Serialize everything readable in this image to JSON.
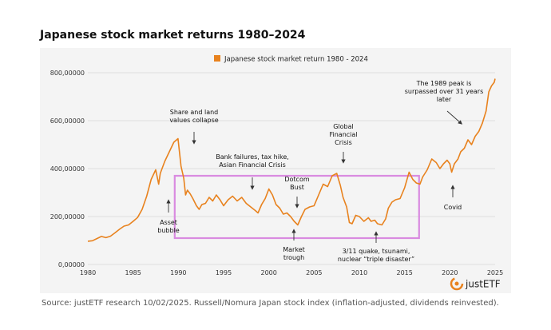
{
  "header": {
    "title": "Japanese stock market returns 1980–2024"
  },
  "footer": {
    "source": "Source: justETF research 10/02/2025. Russell/Nomura Japan stock index (inflation-adjusted, dividends reinvested)."
  },
  "brand": {
    "name": "justETF"
  },
  "colors": {
    "line": "#e8821e",
    "highlight_box": "#d98be0",
    "background": "#f4f4f4",
    "grid": "#d7d7d7"
  },
  "chart_data": {
    "type": "line",
    "title": "Japanese stock market returns 1980–2024",
    "legend": {
      "position": "top-center",
      "entries": [
        "Japanese stock market return 1980 - 2024"
      ]
    },
    "grid": "horizontal",
    "xlim": [
      1980,
      2025
    ],
    "ylim": [
      0,
      800000
    ],
    "x_ticks": [
      "1980",
      "1985",
      "1990",
      "1995",
      "2000",
      "2005",
      "2010",
      "2015",
      "2020",
      "2025"
    ],
    "y_ticks": [
      "0,00000",
      "200,00000",
      "400,00000",
      "600,00000",
      "800,00000"
    ],
    "series": [
      {
        "name": "Japanese stock market return 1980 - 2024",
        "x": [
          1980.0,
          1980.5,
          1981.0,
          1981.5,
          1982.0,
          1982.5,
          1983.0,
          1983.5,
          1984.0,
          1984.5,
          1985.0,
          1985.5,
          1986.0,
          1986.5,
          1987.0,
          1987.5,
          1987.83,
          1988.0,
          1988.5,
          1989.0,
          1989.5,
          1989.96,
          1990.3,
          1990.6,
          1990.8,
          1991.0,
          1991.3,
          1991.6,
          1992.0,
          1992.3,
          1992.6,
          1993.0,
          1993.4,
          1993.8,
          1994.2,
          1994.6,
          1995.0,
          1995.5,
          1996.0,
          1996.5,
          1997.0,
          1997.5,
          1998.0,
          1998.5,
          1998.8,
          1999.2,
          1999.6,
          2000.0,
          2000.4,
          2000.8,
          2001.2,
          2001.6,
          2002.0,
          2002.4,
          2002.8,
          2003.2,
          2003.6,
          2004.0,
          2004.5,
          2005.0,
          2005.5,
          2006.0,
          2006.5,
          2007.0,
          2007.5,
          2007.9,
          2008.2,
          2008.6,
          2008.9,
          2009.2,
          2009.6,
          2010.0,
          2010.5,
          2011.0,
          2011.3,
          2011.7,
          2012.0,
          2012.5,
          2012.9,
          2013.2,
          2013.6,
          2014.0,
          2014.5,
          2015.0,
          2015.5,
          2015.9,
          2016.3,
          2016.7,
          2017.0,
          2017.5,
          2018.0,
          2018.5,
          2018.9,
          2019.3,
          2019.7,
          2020.0,
          2020.2,
          2020.5,
          2020.9,
          2021.2,
          2021.6,
          2022.0,
          2022.4,
          2022.8,
          2023.2,
          2023.6,
          2024.0,
          2024.3,
          2024.6,
          2024.9,
          2025.0
        ],
        "y": [
          97000,
          99000,
          108000,
          117000,
          112000,
          118000,
          132000,
          147000,
          160000,
          165000,
          180000,
          196000,
          230000,
          285000,
          355000,
          395000,
          335000,
          380000,
          430000,
          470000,
          510000,
          525000,
          410000,
          360000,
          290000,
          310000,
          295000,
          275000,
          245000,
          230000,
          250000,
          255000,
          280000,
          265000,
          290000,
          270000,
          245000,
          270000,
          285000,
          265000,
          280000,
          255000,
          240000,
          225000,
          215000,
          250000,
          275000,
          315000,
          290000,
          250000,
          235000,
          210000,
          215000,
          200000,
          180000,
          165000,
          200000,
          230000,
          240000,
          245000,
          290000,
          335000,
          325000,
          370000,
          380000,
          330000,
          280000,
          240000,
          175000,
          170000,
          205000,
          200000,
          180000,
          195000,
          180000,
          185000,
          170000,
          165000,
          190000,
          235000,
          260000,
          270000,
          275000,
          320000,
          385000,
          355000,
          340000,
          335000,
          365000,
          395000,
          440000,
          425000,
          400000,
          420000,
          435000,
          420000,
          385000,
          420000,
          440000,
          470000,
          485000,
          520000,
          500000,
          535000,
          555000,
          590000,
          640000,
          720000,
          745000,
          760000,
          775000
        ]
      }
    ],
    "annotations": [
      {
        "label": "Asset bubble",
        "lines": [
          "Asset",
          "bubble"
        ]
      },
      {
        "label": "Share and land values collapse",
        "lines": [
          "Share and land",
          "values collapse"
        ]
      },
      {
        "label": "Bank failures, tax hike, Asian Financial Crisis",
        "lines": [
          "Bank failures, tax hike,",
          "Asian Financial Crisis"
        ]
      },
      {
        "label": "Dotcom Bust",
        "lines": [
          "Dotcom",
          "Bust"
        ]
      },
      {
        "label": "Market trough",
        "lines": [
          "Market",
          "trough"
        ]
      },
      {
        "label": "Global Financial Crisis",
        "lines": [
          "Global",
          "Financial",
          "Crisis"
        ]
      },
      {
        "label": "3/11 quake, tsunami, nuclear “triple disaster”",
        "lines": [
          "3/11 quake, tsunami,",
          "nuclear “triple disaster”"
        ]
      },
      {
        "label": "Covid",
        "lines": [
          "Covid"
        ]
      },
      {
        "label": "The 1989 peak is surpassed over 31 years later",
        "lines": [
          "The 1989 peak is",
          "surpassed over 31 years",
          "later"
        ]
      }
    ]
  }
}
